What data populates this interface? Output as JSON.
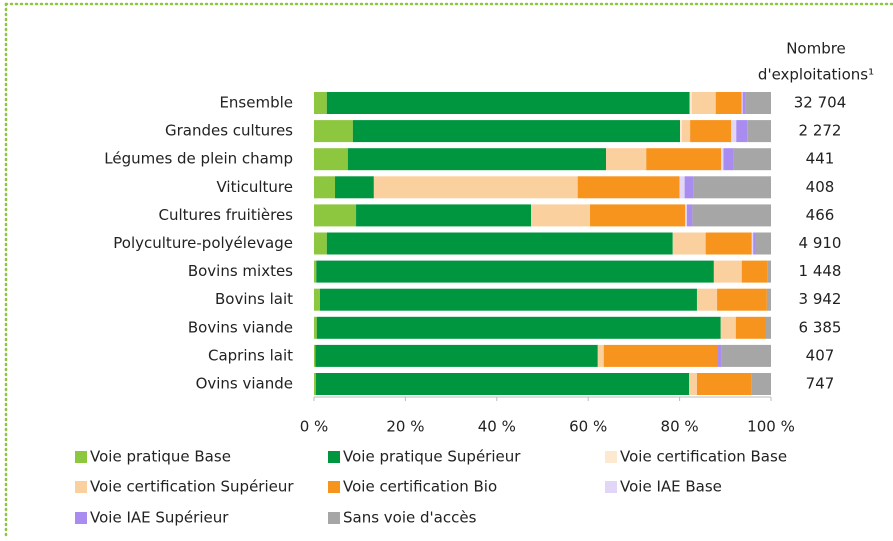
{
  "chart_data": {
    "type": "stacked-bar-horizontal",
    "categories": [
      "Ensemble",
      "Grandes cultures",
      "Légumes de plein champ",
      "Viticulture",
      "Cultures fruitières",
      "Polyculture-polyélevage",
      "Bovins mixtes",
      "Bovins lait",
      "Bovins viande",
      "Caprins lait",
      "Ovins viande"
    ],
    "series": [
      {
        "name": "Voie pratique Base",
        "color": "#8dc63f",
        "values": [
          2.8,
          8.5,
          7.4,
          4.6,
          9.2,
          2.8,
          0.5,
          1.3,
          0.6,
          0.3,
          0.4
        ]
      },
      {
        "name": "Voie pratique Supérieur",
        "color": "#009640",
        "values": [
          79.4,
          71.6,
          56.5,
          8.5,
          38.3,
          75.7,
          87.0,
          82.5,
          88.4,
          61.8,
          81.7
        ]
      },
      {
        "name": "Voie certification Base",
        "color": "#fde8d0",
        "values": [
          0.5,
          0.4,
          0,
          0,
          0,
          0,
          0,
          0,
          0,
          0,
          0
        ]
      },
      {
        "name": "Voie certification Supérieur",
        "color": "#fbd09f",
        "values": [
          5.2,
          1.8,
          8.8,
          44.6,
          12.9,
          7.2,
          6.1,
          4.4,
          3.3,
          1.3,
          1.7
        ]
      },
      {
        "name": "Voie certification Bio",
        "color": "#f7941d",
        "values": [
          5.7,
          9.0,
          16.4,
          22.3,
          20.8,
          10.1,
          5.7,
          10.9,
          6.6,
          24.9,
          12.0
        ]
      },
      {
        "name": "Voie IAE Base",
        "color": "#e2d6f7",
        "values": [
          0.2,
          1.1,
          0.5,
          1.1,
          0.4,
          0.3,
          0,
          0,
          0,
          0,
          0
        ]
      },
      {
        "name": "Voie IAE Supérieur",
        "color": "#a98cf0",
        "values": [
          0.6,
          2.4,
          2.1,
          2.0,
          1.2,
          0.5,
          0,
          0,
          0,
          0.9,
          0
        ]
      },
      {
        "name": "Sans voie d'accès",
        "color": "#a6a6a6",
        "values": [
          5.6,
          5.2,
          8.3,
          16.9,
          17.2,
          3.4,
          0.7,
          0.9,
          1.1,
          10.8,
          4.2
        ]
      }
    ],
    "xlim": [
      0,
      100
    ],
    "xticks": [
      {
        "value": 0,
        "label": "0 %"
      },
      {
        "value": 20,
        "label": "20 %"
      },
      {
        "value": 40,
        "label": "40 %"
      },
      {
        "value": 60,
        "label": "60 %"
      },
      {
        "value": 80,
        "label": "80 %"
      },
      {
        "value": 100,
        "label": "100 %"
      }
    ],
    "counts_title": [
      "Nombre",
      "d'exploitations¹"
    ],
    "counts": [
      32704,
      2272,
      441,
      408,
      466,
      4910,
      1448,
      3942,
      6385,
      407,
      747
    ],
    "counts_labels": [
      "32 704",
      "2 272",
      "441",
      "408",
      "466",
      "4 910",
      "1 448",
      "3 942",
      "6 385",
      "407",
      "747"
    ]
  }
}
